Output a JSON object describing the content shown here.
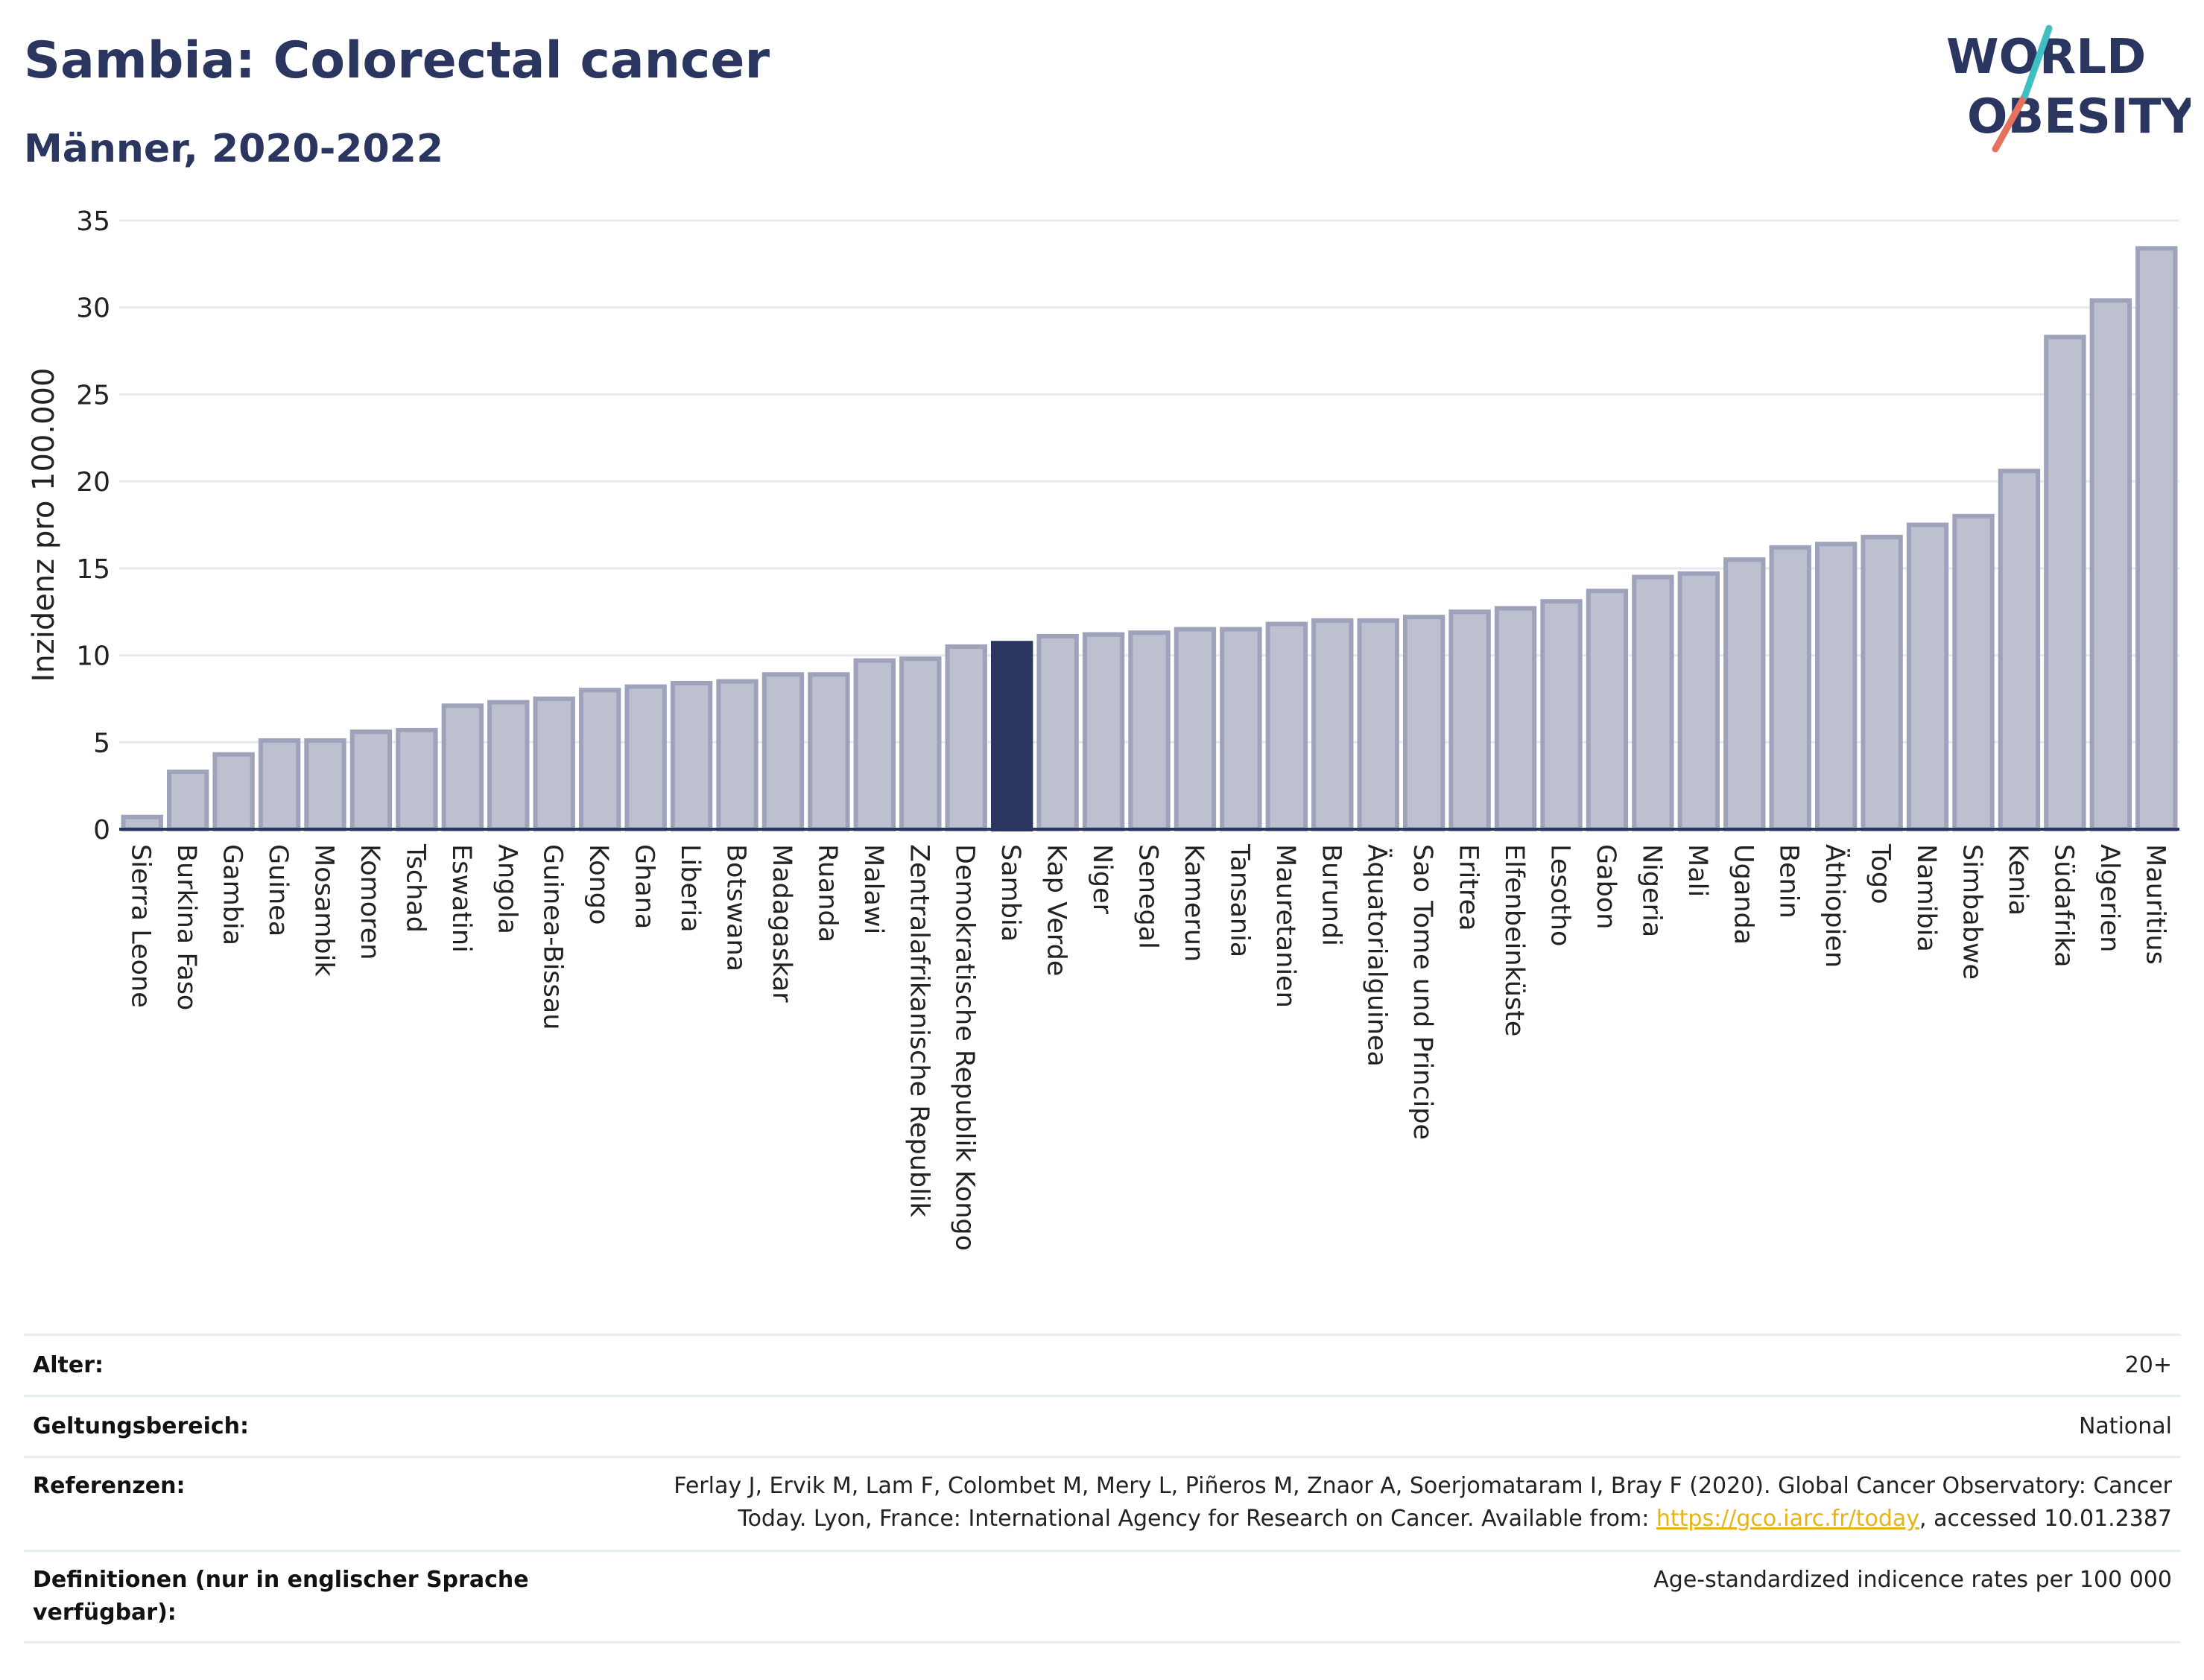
{
  "header": {
    "title": "Sambia: Colorectal cancer",
    "subtitle": "Männer, 2020-2022"
  },
  "logo": {
    "line1": "WORLD",
    "line2": "OBESITY",
    "accent_colors": [
      "#3fbfc2",
      "#e4725e"
    ]
  },
  "colors": {
    "bar": "#bcc0cf",
    "bar_stroke": "#9ea3bb",
    "highlight": "#2a3560",
    "grid": "#e6e9ef"
  },
  "chart_data": {
    "type": "bar",
    "ylabel": "Inzidenz pro 100.000",
    "ylim": [
      0,
      35
    ],
    "yticks": [
      0,
      5,
      10,
      15,
      20,
      25,
      30,
      35
    ],
    "highlight": "Sambia",
    "categories": [
      "Sierra Leone",
      "Burkina Faso",
      "Gambia",
      "Guinea",
      "Mosambik",
      "Komoren",
      "Tschad",
      "Eswatini",
      "Angola",
      "Guinea-Bissau",
      "Kongo",
      "Ghana",
      "Liberia",
      "Botswana",
      "Madagaskar",
      "Ruanda",
      "Malawi",
      "Zentralafrikanische Republik",
      "Demokratische Republik Kongo",
      "Sambia",
      "Kap Verde",
      "Niger",
      "Senegal",
      "Kamerun",
      "Tansania",
      "Mauretanien",
      "Burundi",
      "Äquatorialguinea",
      "Sao Tome und Principe",
      "Eritrea",
      "Elfenbeinküste",
      "Lesotho",
      "Gabon",
      "Nigeria",
      "Mali",
      "Uganda",
      "Benin",
      "Äthiopien",
      "Togo",
      "Namibia",
      "Simbabwe",
      "Kenia",
      "Südafrika",
      "Algerien",
      "Mauritius"
    ],
    "values": [
      0.7,
      3.3,
      4.3,
      5.1,
      5.1,
      5.6,
      5.7,
      7.1,
      7.3,
      7.5,
      8.0,
      8.2,
      8.4,
      8.5,
      8.9,
      8.9,
      9.7,
      9.8,
      10.5,
      10.7,
      11.1,
      11.2,
      11.3,
      11.5,
      11.5,
      11.8,
      12.0,
      12.0,
      12.2,
      12.5,
      12.7,
      13.1,
      13.7,
      14.5,
      14.7,
      15.5,
      16.2,
      16.4,
      16.8,
      17.5,
      18.0,
      20.6,
      28.3,
      30.4,
      33.4
    ]
  },
  "info": {
    "rows": [
      {
        "key": "Alter:",
        "value": "20+"
      },
      {
        "key": "Geltungsbereich:",
        "value": "National"
      },
      {
        "key": "Referenzen:",
        "value": "Ferlay J, Ervik M, Lam F, Colombet M, Mery L, Piñeros M, Znaor A, Soerjomataram I, Bray F (2020). Global Cancer Observatory: Cancer Today. Lyon, France: International Agency for Research on Cancer. Available from: ",
        "link": "https://gco.iarc.fr/today",
        "suffix": ", accessed 10.01.2387"
      },
      {
        "key": "Definitionen (nur in englischer Sprache verfügbar):",
        "value": "Age-standardized indicence rates per 100 000"
      }
    ]
  }
}
